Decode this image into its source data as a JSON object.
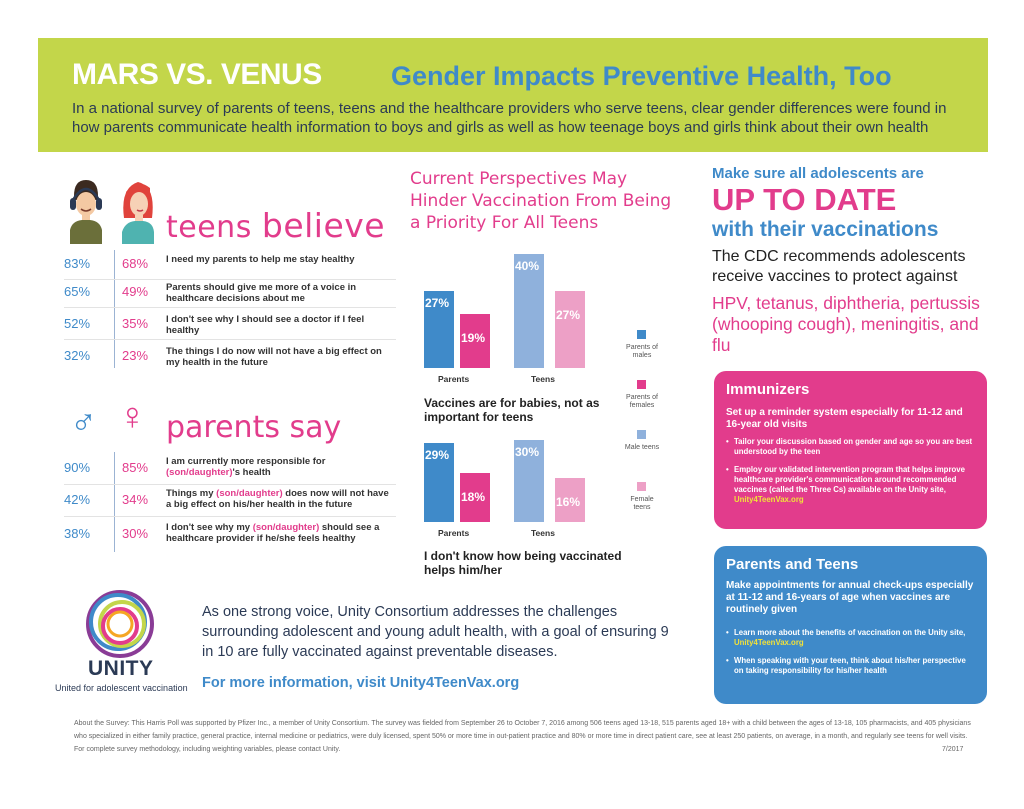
{
  "header": {
    "title_main": "MARS VS. VENUS",
    "title_sub": "Gender Impacts Preventive Health, Too",
    "intro": "In a national survey of parents of teens, teens and the healthcare providers who serve teens, clear gender differences were found in how parents communicate health information to boys and girls as well as how teenage boys and girls think about their own health"
  },
  "teens": {
    "heading_a": "teens",
    "heading_b": "believe",
    "rows": [
      {
        "male": "83%",
        "female": "68%",
        "text": "I need my parents to help me stay healthy"
      },
      {
        "male": "65%",
        "female": "49%",
        "text": "Parents should give me more of a voice in healthcare decisions about me"
      },
      {
        "male": "52%",
        "female": "35%",
        "text": "I don't see why I should see a doctor if I feel healthy"
      },
      {
        "male": "32%",
        "female": "23%",
        "text": "The things I do now will not have a big effect on my health in the future"
      }
    ]
  },
  "parents": {
    "heading_a": "parents",
    "heading_b": "say",
    "rows": [
      {
        "male": "90%",
        "female": "85%",
        "pre": "I am currently more responsible for",
        "hl": "(son/daughter)",
        "post": "'s health"
      },
      {
        "male": "42%",
        "female": "34%",
        "pre": "Things my",
        "hl": "(son/daughter)",
        "post": "does now will not have a big effect on his/her health in the future"
      },
      {
        "male": "38%",
        "female": "30%",
        "pre": "I don't see why my",
        "hl": "(son/daughter)",
        "post": "should see a healthcare provider if he/she feels healthy"
      }
    ]
  },
  "chart_section": {
    "title": "Current Perspectives May Hinder Vaccination From Being a Priority For All Teens"
  },
  "chart_data": [
    {
      "type": "bar",
      "title": "Vaccines are for babies, not as important for teens",
      "categories": [
        "Parents",
        "Teens"
      ],
      "series": [
        {
          "name": "Parents of males",
          "values": [
            27,
            null
          ]
        },
        {
          "name": "Parents of females",
          "values": [
            19,
            null
          ]
        },
        {
          "name": "Male teens",
          "values": [
            null,
            40
          ]
        },
        {
          "name": "Female teens",
          "values": [
            null,
            27
          ]
        }
      ],
      "labels": [
        "27%",
        "19%",
        "40%",
        "27%"
      ],
      "ylim": [
        0,
        45
      ]
    },
    {
      "type": "bar",
      "title": "I don't know how being vaccinated helps him/her",
      "categories": [
        "Parents",
        "Teens"
      ],
      "series": [
        {
          "name": "Parents of males",
          "values": [
            29,
            null
          ]
        },
        {
          "name": "Parents of females",
          "values": [
            18,
            null
          ]
        },
        {
          "name": "Male teens",
          "values": [
            null,
            30
          ]
        },
        {
          "name": "Female teens",
          "values": [
            null,
            16
          ]
        }
      ],
      "labels": [
        "29%",
        "18%",
        "30%",
        "16%"
      ],
      "ylim": [
        0,
        33
      ]
    }
  ],
  "legend": [
    {
      "label": "Parents of males",
      "color": "#3f8ac9"
    },
    {
      "label": "Parents of females",
      "color": "#e23c8c"
    },
    {
      "label": "Male teens",
      "color": "#8fb1dc"
    },
    {
      "label": "Female teens",
      "color": "#eda0c6"
    }
  ],
  "right": {
    "make_sure": "Make sure all adolescents are",
    "up_to_date": "UP TO DATE",
    "with_vacc": "with their vaccinations",
    "cdc": "The CDC recommends adolescents receive vaccines to protect against",
    "vaccines": "HPV, tetanus, diphtheria, pertussis (whooping cough), meningitis, and flu"
  },
  "immunizers": {
    "title": "Immunizers",
    "lead": "Set up a reminder system especially for 11-12 and 16-year old visits",
    "bullet1": "Tailor your discussion based on gender and age so you are best understood by the teen",
    "bullet2": "Employ our validated intervention program that helps improve healthcare provider's communication around recommended vaccines (called the Three Cs) available on the Unity site,",
    "link": "Unity4TeenVax.org"
  },
  "parents_teens": {
    "title": "Parents and Teens",
    "lead": "Make appointments for annual check-ups especially at 11-12 and 16-years of age when vaccines are routinely given",
    "bullet1": "Learn more about the benefits of vaccination on the Unity site,",
    "link": "Unity4TeenVax.org",
    "bullet2": "When speaking with your teen, think about his/her perspective on taking responsibility for his/her health"
  },
  "unity": {
    "word": "UNITY",
    "sub": "United for adolescent vaccination",
    "text": "As one strong voice, Unity Consortium addresses the challenges surrounding adolescent and young adult health, with a goal of ensuring 9 in 10 are fully vaccinated against preventable diseases.",
    "link": "For more information, visit Unity4TeenVax.org"
  },
  "footer": {
    "text": "About the Survey: This Harris Poll was supported by Pfizer Inc., a member of Unity Consortium. The survey was fielded from September 26 to October 7, 2016 among 506 teens aged 13-18, 515 parents aged 18+ with a child between the ages of 13-18, 105 pharmacists, and 405 physicians who specialized in either family practice, general practice, internal medicine or pediatrics, were duly licensed, spent 50% or more time in out-patient practice and 80% or more time in direct patient care, see at least 250 patients, on average, in a month, and regularly see teens for well visits. For complete survey methodology, including weighting variables, please contact Unity.",
    "date": "7/2017"
  }
}
